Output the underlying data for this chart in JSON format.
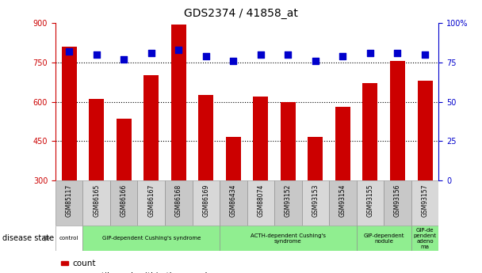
{
  "title": "GDS2374 / 41858_at",
  "samples": [
    "GSM85117",
    "GSM86165",
    "GSM86166",
    "GSM86167",
    "GSM86168",
    "GSM86169",
    "GSM86434",
    "GSM88074",
    "GSM93152",
    "GSM93153",
    "GSM93154",
    "GSM93155",
    "GSM93156",
    "GSM93157"
  ],
  "counts": [
    810,
    610,
    535,
    700,
    895,
    625,
    465,
    620,
    600,
    465,
    580,
    670,
    755,
    680
  ],
  "percentiles": [
    82,
    80,
    77,
    81,
    83,
    79,
    76,
    80,
    80,
    76,
    79,
    81,
    81,
    80
  ],
  "bar_color": "#cc0000",
  "dot_color": "#0000cc",
  "ylim_left": [
    300,
    900
  ],
  "ylim_right": [
    0,
    100
  ],
  "yticks_left": [
    300,
    450,
    600,
    750,
    900
  ],
  "yticks_right": [
    0,
    25,
    50,
    75,
    100
  ],
  "hlines": [
    450,
    600,
    750
  ],
  "group_starts": [
    0,
    1,
    6,
    11,
    13
  ],
  "group_ends": [
    1,
    6,
    11,
    13,
    14
  ],
  "group_labels": [
    "control",
    "GIP-dependent Cushing's syndrome",
    "ACTH-dependent Cushing's\nsyndrome",
    "GIP-dependent\nnodule",
    "GIP-de\npendent\nadeno\nma"
  ],
  "group_colors": [
    "#ffffff",
    "#90EE90",
    "#90EE90",
    "#90EE90",
    "#90EE90"
  ],
  "title_fontsize": 10,
  "tick_fontsize": 7,
  "bar_width": 0.55,
  "dot_size": 30,
  "xtick_bg": "#cccccc"
}
